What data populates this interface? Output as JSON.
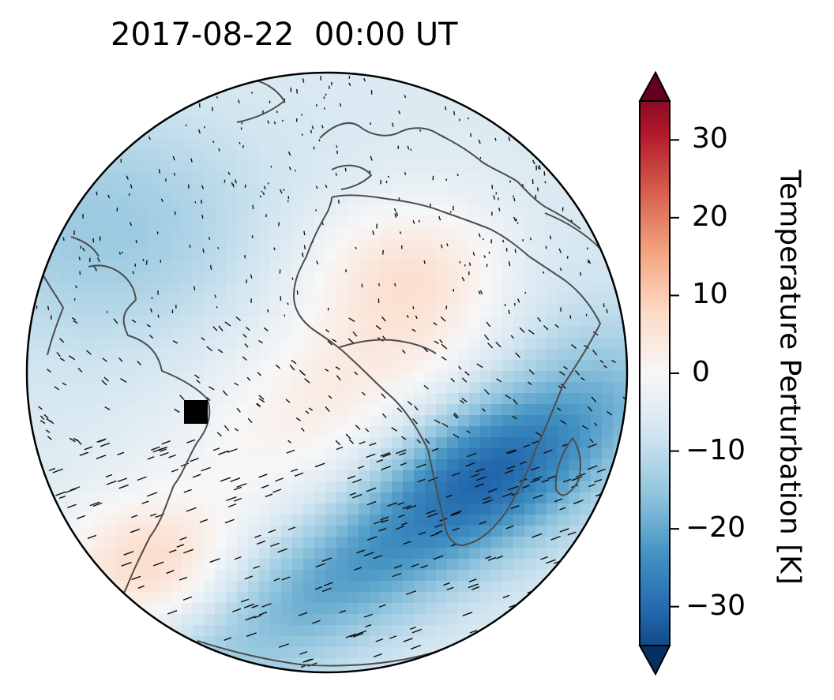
{
  "title": "2017-08-22  00:00 UT",
  "colorbar": {
    "label": "Temperature Perturbation [K]",
    "ticks": [
      30,
      20,
      10,
      0,
      -10,
      -20,
      -30
    ],
    "tick_labels": [
      "30",
      "20",
      "10",
      "0",
      "−10",
      "−20",
      "−30"
    ],
    "vmin": -35,
    "vmax": 35,
    "extend": "both",
    "colormap": [
      "#67001f",
      "#b2182b",
      "#d6604d",
      "#f4a582",
      "#fddbc7",
      "#f7f7f7",
      "#d1e5f0",
      "#92c5de",
      "#4393c3",
      "#2166ac",
      "#053061"
    ]
  },
  "map": {
    "projection": "orthographic",
    "coastline_color": "#4d4d4d",
    "marker": {
      "shape": "square",
      "color": "#000000",
      "location": "northeast Brazil"
    }
  }
}
